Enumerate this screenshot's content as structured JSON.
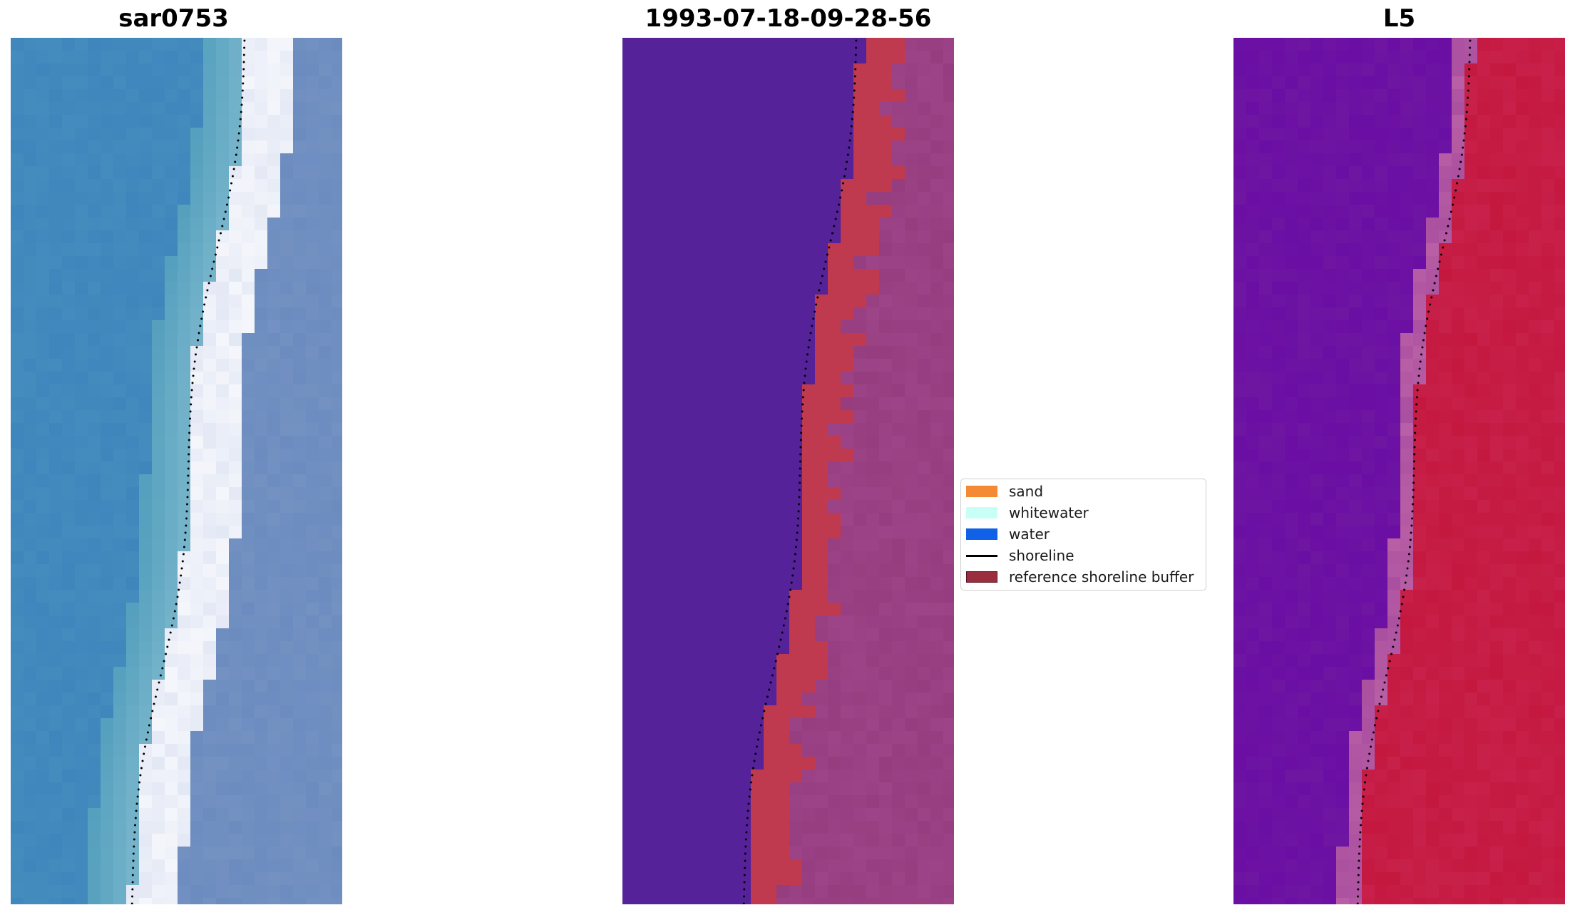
{
  "panels": [
    {
      "id": "sar",
      "title": "sar0753"
    },
    {
      "id": "classification",
      "title": "1993-07-18-09-28-56"
    },
    {
      "id": "index",
      "title": "L5"
    }
  ],
  "legend": {
    "items": [
      {
        "label": "sand",
        "kind": "patch",
        "color": "#f58a35"
      },
      {
        "label": "whitewater",
        "kind": "patch",
        "color": "#c8fff7"
      },
      {
        "label": "water",
        "kind": "patch",
        "color": "#1060e8"
      },
      {
        "label": "shoreline",
        "kind": "line",
        "color": "#000000"
      },
      {
        "label": "reference shoreline buffer",
        "kind": "patch",
        "color": "#9a2e3e"
      }
    ]
  },
  "colors": {
    "sar_water": "#3f86bd",
    "sar_surf": "#f4f6fb",
    "sar_beach": "#6c8cc0",
    "class_water": "#55229a",
    "class_buffer": "#bf3a4e",
    "class_land": "#963d80",
    "index_water": "#6a0ea4",
    "index_land": "#c4183f"
  }
}
